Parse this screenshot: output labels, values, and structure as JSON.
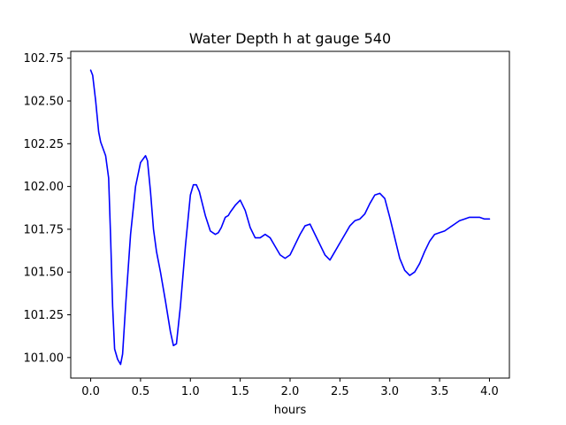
{
  "chart_data": {
    "type": "line",
    "title": "Water Depth h at gauge 540",
    "xlabel": "hours",
    "ylabel": "",
    "xlim": [
      -0.2,
      4.2
    ],
    "ylim": [
      100.88,
      102.79
    ],
    "xticks": [
      0.0,
      0.5,
      1.0,
      1.5,
      2.0,
      2.5,
      3.0,
      3.5,
      4.0
    ],
    "xtick_labels": [
      "0.0",
      "0.5",
      "1.0",
      "1.5",
      "2.0",
      "2.5",
      "3.0",
      "3.5",
      "4.0"
    ],
    "yticks": [
      101.0,
      101.25,
      101.5,
      101.75,
      102.0,
      102.25,
      102.5,
      102.75
    ],
    "ytick_labels": [
      "101.00",
      "101.25",
      "101.50",
      "101.75",
      "102.00",
      "102.25",
      "102.50",
      "102.75"
    ],
    "grid": false,
    "series": [
      {
        "color": "#0000ff",
        "x": [
          0.0,
          0.02,
          0.05,
          0.08,
          0.1,
          0.15,
          0.18,
          0.2,
          0.22,
          0.24,
          0.27,
          0.3,
          0.32,
          0.35,
          0.4,
          0.45,
          0.5,
          0.55,
          0.57,
          0.6,
          0.63,
          0.66,
          0.7,
          0.75,
          0.8,
          0.83,
          0.86,
          0.9,
          0.95,
          1.0,
          1.03,
          1.06,
          1.09,
          1.12,
          1.15,
          1.2,
          1.25,
          1.28,
          1.31,
          1.35,
          1.38,
          1.4,
          1.45,
          1.5,
          1.55,
          1.6,
          1.65,
          1.7,
          1.75,
          1.8,
          1.85,
          1.9,
          1.95,
          2.0,
          2.05,
          2.1,
          2.15,
          2.2,
          2.25,
          2.3,
          2.35,
          2.4,
          2.45,
          2.5,
          2.55,
          2.6,
          2.65,
          2.7,
          2.75,
          2.8,
          2.85,
          2.9,
          2.95,
          3.0,
          3.05,
          3.1,
          3.15,
          3.2,
          3.25,
          3.3,
          3.35,
          3.4,
          3.45,
          3.5,
          3.55,
          3.6,
          3.65,
          3.7,
          3.75,
          3.8,
          3.85,
          3.9,
          3.95,
          4.0
        ],
        "y": [
          102.68,
          102.65,
          102.5,
          102.32,
          102.26,
          102.18,
          102.05,
          101.7,
          101.3,
          101.05,
          100.99,
          100.96,
          101.02,
          101.3,
          101.72,
          102.0,
          102.14,
          102.18,
          102.15,
          101.97,
          101.75,
          101.62,
          101.5,
          101.33,
          101.15,
          101.07,
          101.08,
          101.3,
          101.65,
          101.95,
          102.01,
          102.01,
          101.97,
          101.9,
          101.83,
          101.74,
          101.72,
          101.73,
          101.76,
          101.82,
          101.83,
          101.85,
          101.89,
          101.92,
          101.86,
          101.76,
          101.7,
          101.7,
          101.72,
          101.7,
          101.65,
          101.6,
          101.58,
          101.6,
          101.66,
          101.72,
          101.77,
          101.78,
          101.72,
          101.66,
          101.6,
          101.57,
          101.62,
          101.67,
          101.72,
          101.77,
          101.8,
          101.81,
          101.84,
          101.9,
          101.95,
          101.96,
          101.93,
          101.82,
          101.7,
          101.58,
          101.51,
          101.48,
          101.5,
          101.55,
          101.62,
          101.68,
          101.72,
          101.73,
          101.74,
          101.76,
          101.78,
          101.8,
          101.81,
          101.82,
          101.82,
          101.82,
          101.81,
          101.81
        ]
      }
    ]
  }
}
